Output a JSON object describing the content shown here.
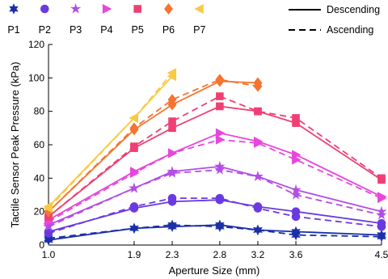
{
  "chart_data": {
    "type": "line",
    "xlabel": "Aperture Size (mm)",
    "ylabel": "Tactile Sensor Peak Pressure (kPa)",
    "xlim": [
      1.0,
      4.5
    ],
    "ylim": [
      0,
      120
    ],
    "x_ticks": [
      "1.0",
      "1.9",
      "2.3",
      "2.8",
      "3.2",
      "3.6",
      "4.5"
    ],
    "y_ticks": [
      "0",
      "20",
      "40",
      "60",
      "80",
      "100",
      "120"
    ],
    "grid": false,
    "legend_line_styles": [
      {
        "label": "Descending",
        "style": "solid"
      },
      {
        "label": "Ascending",
        "style": "dashed"
      }
    ],
    "series": [
      {
        "name": "P1",
        "marker": "hexstar",
        "color": "#1a2fa8",
        "x": [
          1.0,
          1.9,
          2.3,
          2.8,
          3.2,
          3.6,
          4.5
        ],
        "descending": [
          3,
          10,
          11,
          12,
          9,
          8,
          6
        ],
        "ascending": [
          4,
          10,
          12,
          11,
          9,
          6,
          5
        ]
      },
      {
        "name": "P2",
        "marker": "circle",
        "color": "#6a3ae0",
        "x": [
          1.0,
          1.9,
          2.3,
          2.8,
          3.2,
          3.6,
          4.5
        ],
        "descending": [
          8,
          22,
          26,
          27,
          23,
          20,
          13
        ],
        "ascending": [
          7,
          23,
          28,
          28,
          22,
          17,
          11
        ]
      },
      {
        "name": "P3",
        "marker": "star",
        "color": "#b34de6",
        "x": [
          1.0,
          1.9,
          2.3,
          2.8,
          3.2,
          3.6,
          4.5
        ],
        "descending": [
          12,
          34,
          44,
          47,
          41,
          33,
          20
        ],
        "ascending": [
          11,
          34,
          43,
          45,
          41,
          30,
          18
        ]
      },
      {
        "name": "P4",
        "marker": "triangle-right",
        "color": "#e846dd",
        "x": [
          1.0,
          1.9,
          2.3,
          2.8,
          3.2,
          3.6,
          4.5
        ],
        "descending": [
          15,
          44,
          55,
          67,
          62,
          54,
          29
        ],
        "ascending": [
          14,
          43,
          55,
          63,
          61,
          51,
          28
        ]
      },
      {
        "name": "P5",
        "marker": "square",
        "color": "#f03f74",
        "x": [
          1.0,
          1.9,
          2.3,
          2.8,
          3.2,
          3.6,
          4.5
        ],
        "descending": [
          17,
          58,
          70,
          83,
          80,
          73,
          39
        ],
        "ascending": [
          17,
          59,
          74,
          89,
          80,
          76,
          40
        ]
      },
      {
        "name": "P6",
        "marker": "diamond",
        "color": "#f6742f",
        "x": [
          1.0,
          1.9,
          2.3,
          2.8,
          3.2
        ],
        "descending": [
          20,
          69,
          84,
          98,
          97
        ],
        "ascending": [
          20,
          70,
          87,
          99,
          95
        ]
      },
      {
        "name": "P7",
        "marker": "triangle-left",
        "color": "#f9c944",
        "x": [
          1.0,
          1.9,
          2.3
        ],
        "descending": [
          23,
          76,
          101
        ],
        "ascending": [
          22,
          76,
          103
        ]
      }
    ]
  }
}
